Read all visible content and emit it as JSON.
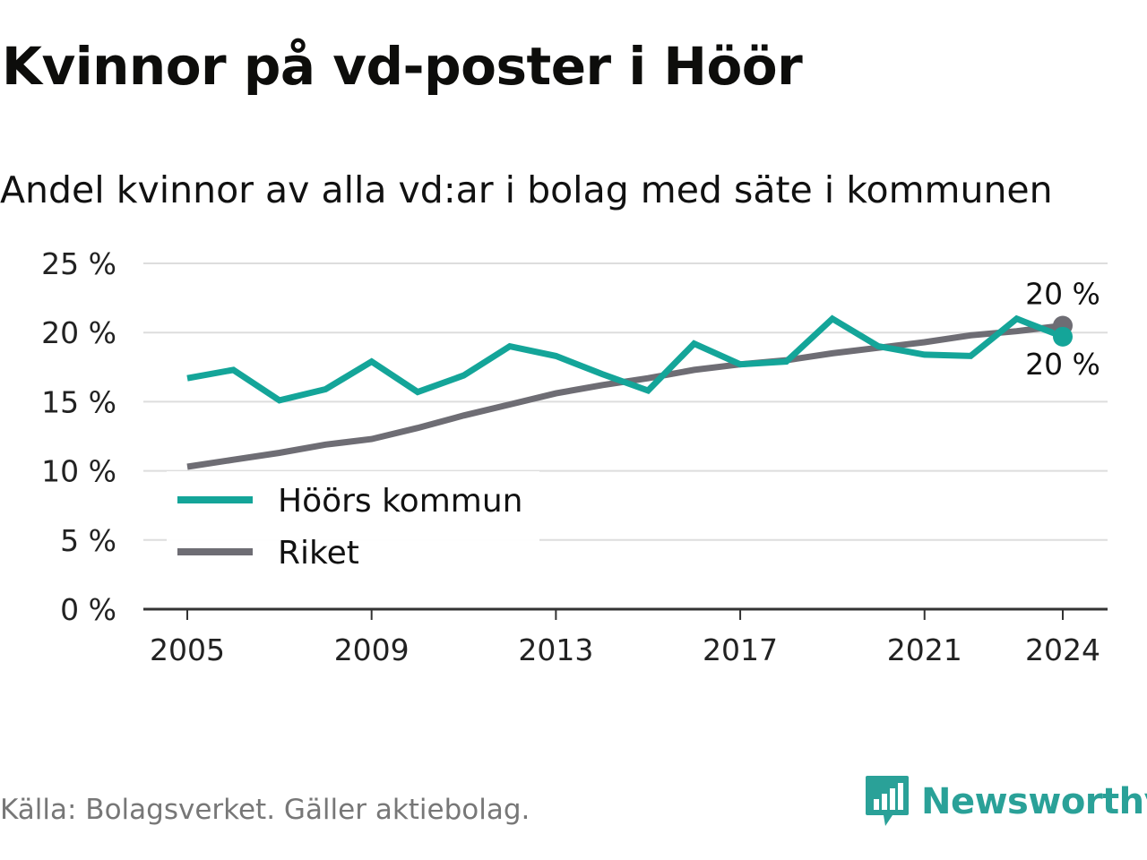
{
  "title": "Kvinnor på vd-poster i Höör",
  "subtitle": "Andel kvinnor av alla vd:ar i bolag med säte i kommunen",
  "source": "Källa: Bolagsverket. Gäller aktiebolag.",
  "brand": {
    "name": "Newsworthy",
    "icon": "newsworthy-logo-icon",
    "color": "#2aa198"
  },
  "chart_data": {
    "type": "line",
    "x": [
      2005,
      2006,
      2007,
      2008,
      2009,
      2010,
      2011,
      2012,
      2013,
      2014,
      2015,
      2016,
      2017,
      2018,
      2019,
      2020,
      2021,
      2022,
      2023,
      2024
    ],
    "series": [
      {
        "name": "Höörs kommun",
        "color": "#14a599",
        "values": [
          16.7,
          17.3,
          15.1,
          15.9,
          17.9,
          15.7,
          16.9,
          19.0,
          18.3,
          17.0,
          15.8,
          19.2,
          17.7,
          17.9,
          21.0,
          19.0,
          18.4,
          18.3,
          21.0,
          19.7
        ]
      },
      {
        "name": "Riket",
        "color": "#6e6d74",
        "values": [
          10.3,
          10.8,
          11.3,
          11.9,
          12.3,
          13.1,
          14.0,
          14.8,
          15.6,
          16.2,
          16.7,
          17.3,
          17.7,
          18.0,
          18.5,
          18.9,
          19.3,
          19.8,
          20.1,
          20.5
        ]
      }
    ],
    "end_labels": [
      {
        "series": "Riket",
        "text": "20 %"
      },
      {
        "series": "Höörs kommun",
        "text": "20 %"
      }
    ],
    "ylim": [
      0,
      25
    ],
    "yticks": [
      0,
      5,
      10,
      15,
      20,
      25
    ],
    "ytick_labels": [
      "0 %",
      "5 %",
      "10 %",
      "15 %",
      "20 %",
      "25 %"
    ],
    "xticks": [
      2005,
      2009,
      2013,
      2017,
      2021,
      2024
    ],
    "xtick_labels": [
      "2005",
      "2009",
      "2013",
      "2017",
      "2021",
      "2024"
    ],
    "xlabel": "",
    "ylabel": "",
    "grid": true,
    "legend": {
      "placement": "bottom-left",
      "entries": [
        "Höörs kommun",
        "Riket"
      ]
    }
  }
}
